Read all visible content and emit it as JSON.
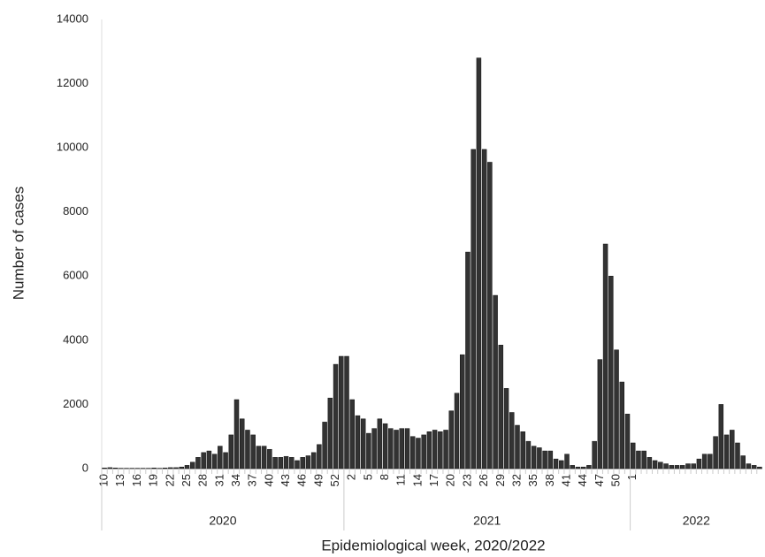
{
  "chart_data": {
    "type": "bar",
    "y_label": "Number of cases",
    "x_label": "Epidemiological week, 2020/2022",
    "groups": [
      "2020",
      "2021",
      "2022"
    ],
    "categories": [
      "10",
      null,
      null,
      "13",
      null,
      null,
      "16",
      null,
      null,
      "19",
      null,
      null,
      "22",
      null,
      null,
      "25",
      null,
      null,
      "28",
      null,
      null,
      "31",
      null,
      null,
      "34",
      null,
      null,
      "37",
      null,
      null,
      "40",
      null,
      null,
      "43",
      null,
      null,
      "46",
      null,
      null,
      "49",
      null,
      null,
      "52",
      null,
      null,
      "2",
      null,
      null,
      "5",
      null,
      null,
      "8",
      null,
      null,
      "11",
      null,
      null,
      "14",
      null,
      null,
      "17",
      null,
      null,
      "20",
      null,
      null,
      "23",
      null,
      null,
      "26",
      null,
      null,
      "29",
      null,
      null,
      "32",
      null,
      null,
      "35",
      null,
      null,
      "38",
      null,
      null,
      "41",
      null,
      null,
      "44",
      null,
      null,
      "47",
      null,
      null,
      "50",
      null,
      null,
      "1",
      null,
      null,
      null,
      null,
      null,
      null,
      null,
      null,
      null,
      null,
      null,
      null,
      null,
      null,
      null,
      null,
      null,
      null,
      null,
      null,
      null,
      null,
      null
    ],
    "values": [
      20,
      30,
      20,
      10,
      10,
      10,
      10,
      10,
      10,
      20,
      10,
      20,
      30,
      30,
      50,
      100,
      200,
      350,
      500,
      550,
      450,
      700,
      500,
      1050,
      2150,
      1550,
      1200,
      1050,
      700,
      700,
      600,
      350,
      350,
      380,
      350,
      250,
      350,
      400,
      500,
      750,
      1450,
      2200,
      3250,
      3500,
      3500,
      2150,
      1650,
      1550,
      1100,
      1250,
      1550,
      1400,
      1250,
      1200,
      1250,
      1250,
      1000,
      950,
      1050,
      1150,
      1200,
      1150,
      1200,
      1800,
      2350,
      3550,
      6750,
      9950,
      12800,
      9950,
      9550,
      5400,
      3850,
      2500,
      1750,
      1350,
      1150,
      850,
      700,
      650,
      550,
      550,
      300,
      250,
      450,
      100,
      50,
      50,
      100,
      850,
      3400,
      7000,
      6000,
      3700,
      2700,
      1700,
      800,
      550,
      550,
      350,
      250,
      200,
      150,
      100,
      100,
      100,
      150,
      150,
      300,
      450,
      450,
      1000,
      2000,
      1050,
      1200,
      800,
      400,
      150,
      100,
      50
    ],
    "color": "#333333",
    "ylim": [
      0,
      14000
    ],
    "yticks": [
      0,
      2000,
      4000,
      6000,
      8000,
      10000,
      12000,
      14000
    ],
    "grid": false
  }
}
